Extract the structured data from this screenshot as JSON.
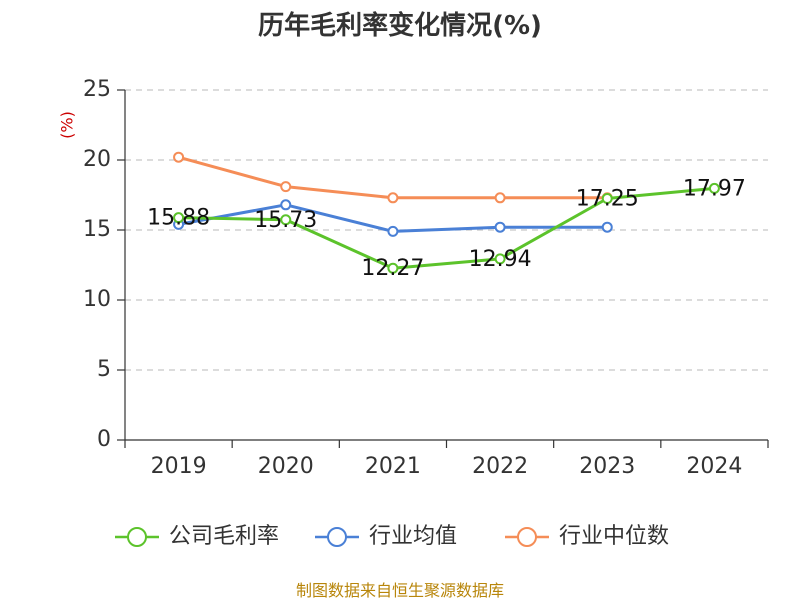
{
  "chart_data": {
    "type": "line",
    "title": "历年毛利率变化情况(%)",
    "ylabel": "(%)",
    "xlabel": "",
    "categories": [
      "2019",
      "2020",
      "2021",
      "2022",
      "2023",
      "2024"
    ],
    "ylim": [
      0,
      25
    ],
    "yticks": [
      "0",
      "5",
      "10",
      "15",
      "20",
      "25"
    ],
    "grid": true,
    "legend_position": "bottom",
    "series": [
      {
        "name": "公司毛利率",
        "color": "#5cc32b",
        "values": [
          15.88,
          15.73,
          12.27,
          12.94,
          17.25,
          17.97
        ],
        "labels": [
          "15.88",
          "15.73",
          "12.27",
          "12.94",
          "17.25",
          "17.97"
        ]
      },
      {
        "name": "行业均值",
        "color": "#4a80d6",
        "values": [
          15.4,
          16.8,
          14.9,
          15.2,
          15.2,
          null
        ]
      },
      {
        "name": "行业中位数",
        "color": "#f58d57",
        "values": [
          20.2,
          18.1,
          17.3,
          17.3,
          17.3,
          null
        ]
      }
    ]
  },
  "source": "制图数据来自恒生聚源数据库"
}
